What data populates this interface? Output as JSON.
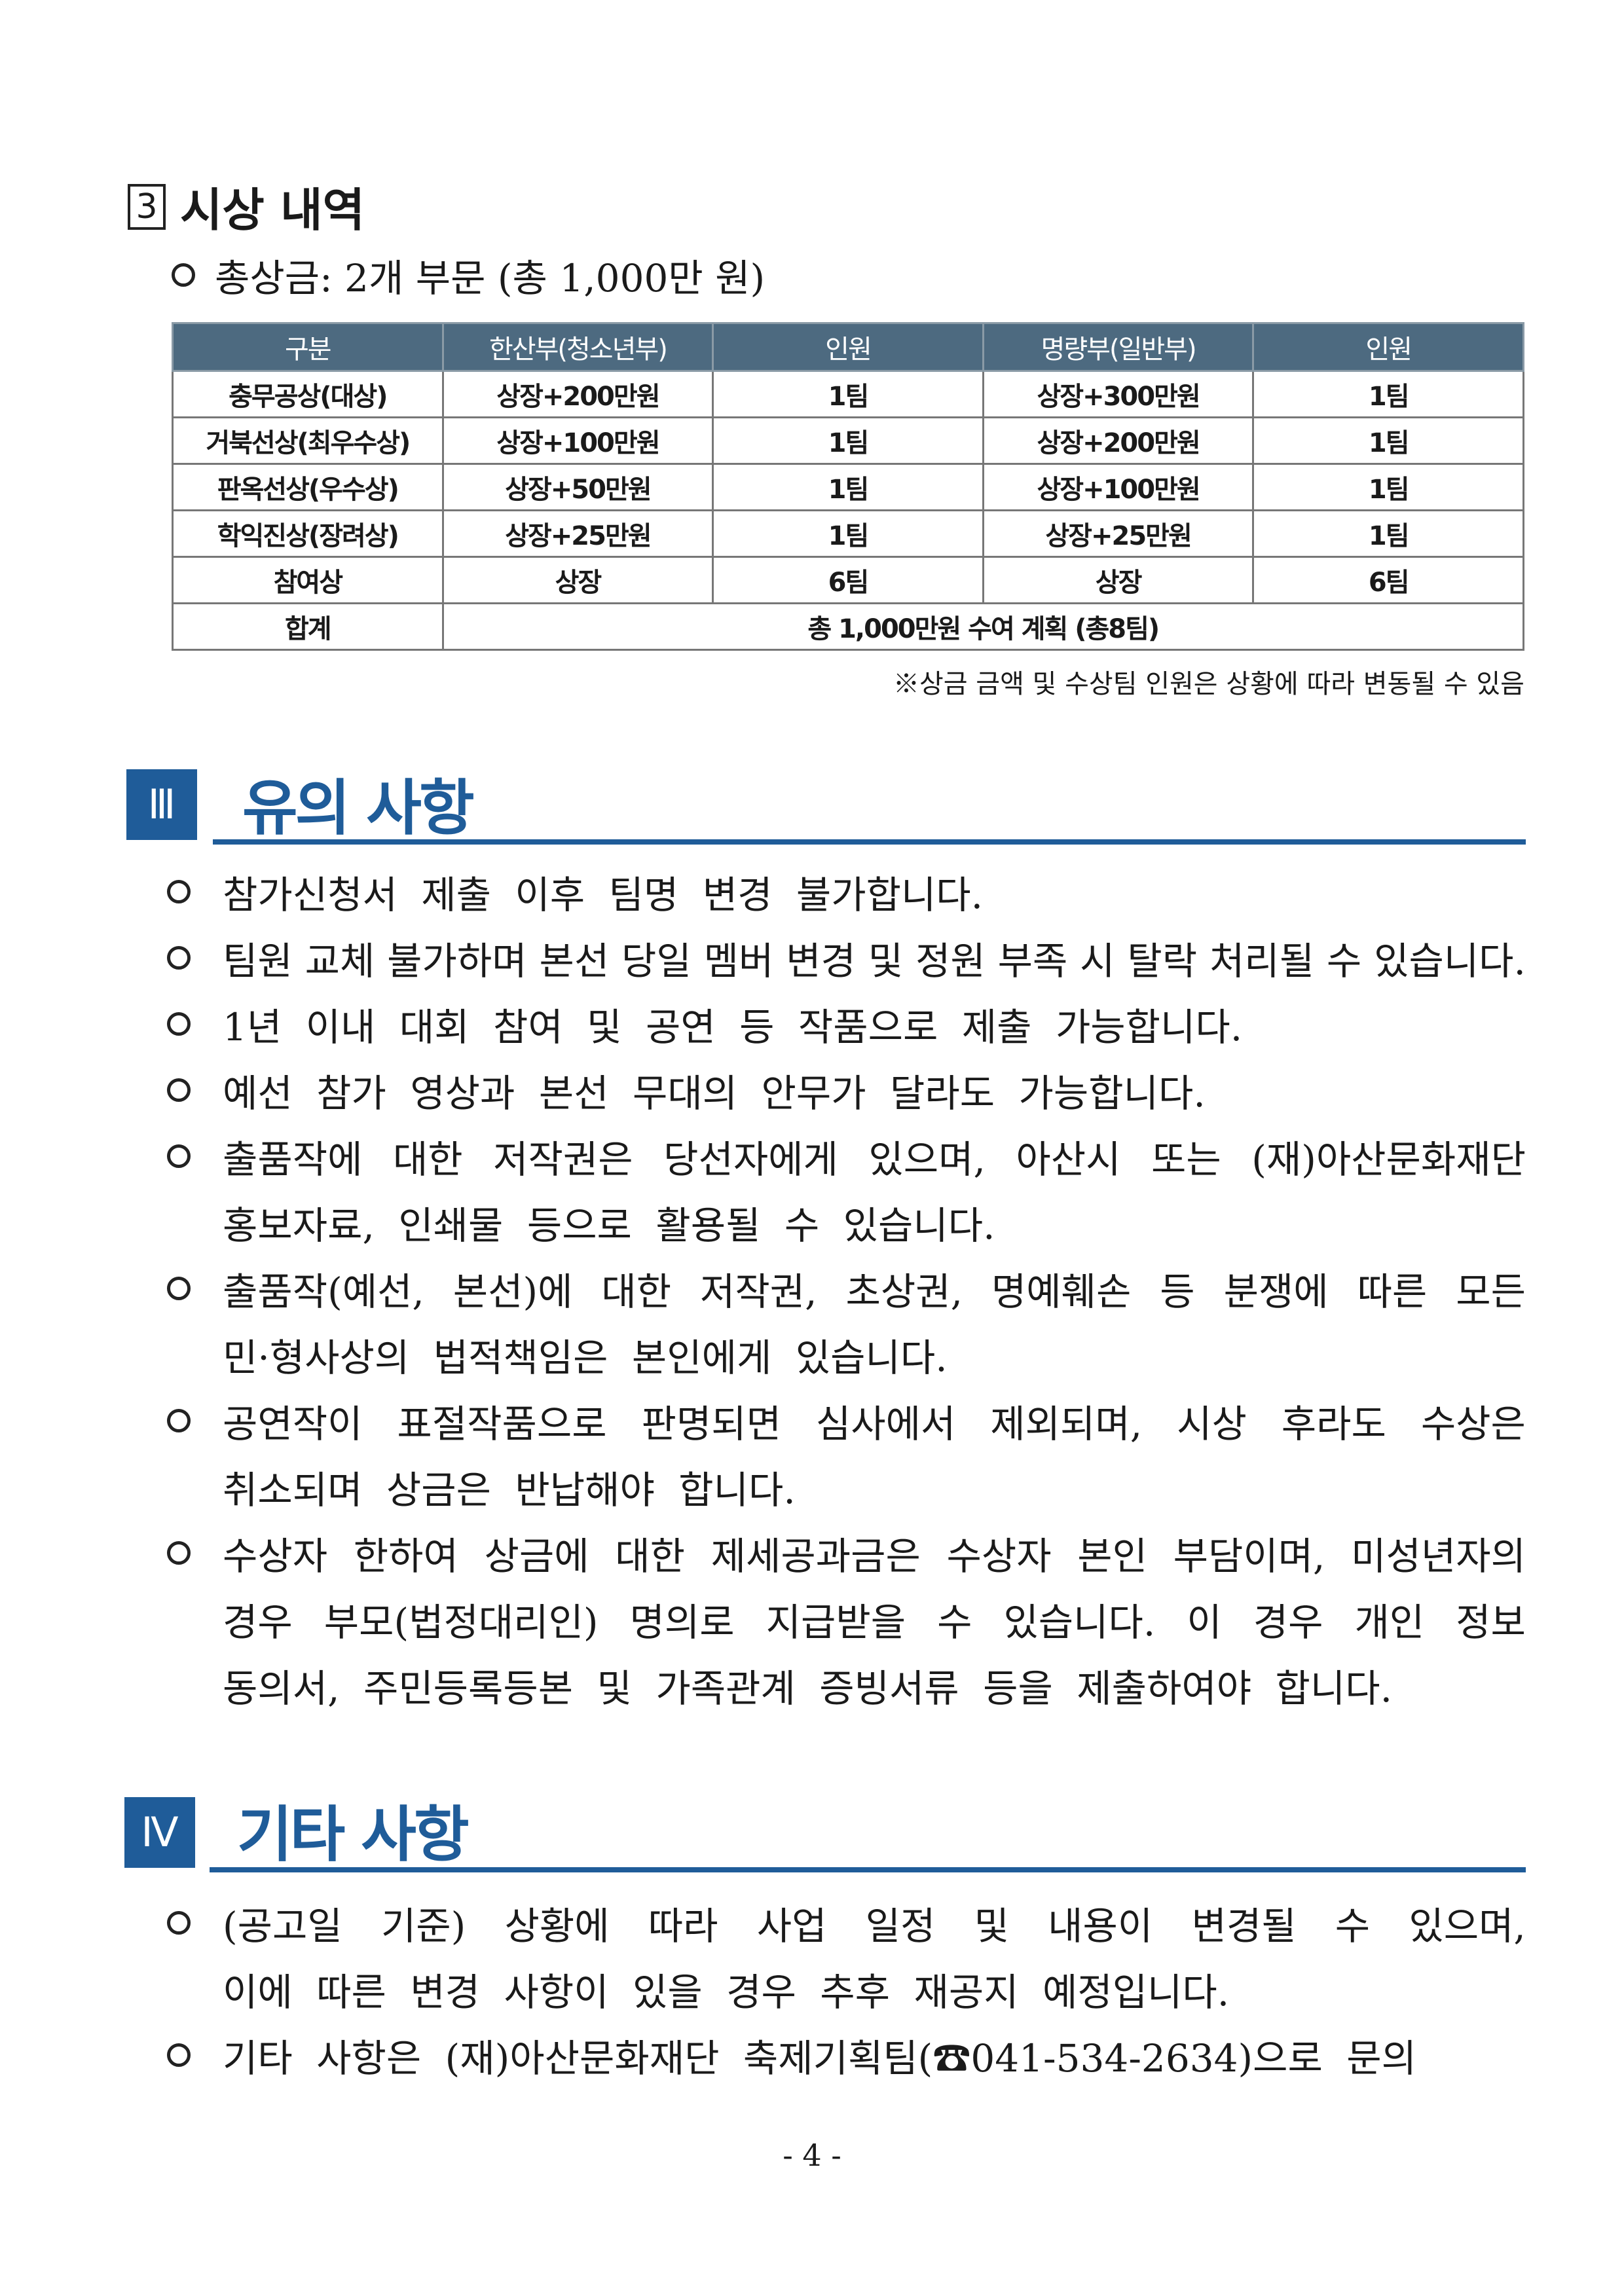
{
  "section3": {
    "number": "3",
    "title": "시상 내역",
    "total_prize": "총상금: 2개 부문 (총 1,000만 원)"
  },
  "table": {
    "headers": [
      "구분",
      "한산부(청소년부)",
      "인원",
      "명량부(일반부)",
      "인원"
    ],
    "rows": [
      [
        "충무공상(대상)",
        "상장+200만원",
        "1팀",
        "상장+300만원",
        "1팀"
      ],
      [
        "거북선상(최우수상)",
        "상장+100만원",
        "1팀",
        "상장+200만원",
        "1팀"
      ],
      [
        "판옥선상(우수상)",
        "상장+50만원",
        "1팀",
        "상장+100만원",
        "1팀"
      ],
      [
        "학익진상(장려상)",
        "상장+25만원",
        "1팀",
        "상장+25만원",
        "1팀"
      ],
      [
        "참여상",
        "상장",
        "6팀",
        "상장",
        "6팀"
      ]
    ],
    "total_label": "합계",
    "total_value": "총 1,000만원 수여 계획 (총8팀)",
    "note": "※상금 금액 및 수상팀 인원은 상황에 따라 변동될 수 있음"
  },
  "section_iii": {
    "number": "Ⅲ",
    "title": "유의 사항",
    "lines": [
      "참가신청서 제출 이후 팀명 변경 불가합니다.",
      "팀원 교체 불가하며 본선 당일 멤버 변경 및 정원 부족 시 탈락 처리될 수 있습니다.",
      "1년 이내 대회 참여 및 공연 등 작품으로 제출 가능합니다.",
      "예선 참가 영상과 본선 무대의 안무가 달라도 가능합니다.",
      "출품작에 대한 저작권은 당선자에게 있으며, 아산시 또는 (재)아산문화재단",
      "홍보자료, 인쇄물 등으로 활용될 수 있습니다.",
      "출품작(예선, 본선)에 대한 저작권, 초상권, 명예훼손 등 분쟁에 따른 모든",
      "민·형사상의 법적책임은 본인에게 있습니다.",
      "공연작이 표절작품으로 판명되면 심사에서 제외되며, 시상 후라도 수상은",
      "취소되며 상금은 반납해야 합니다.",
      "수상자 한하여 상금에 대한 제세공과금은 수상자 본인 부담이며, 미성년자의",
      "경우 부모(법정대리인) 명의로 지급받을 수 있습니다. 이 경우 개인 정보",
      "동의서, 주민등록등본 및 가족관계 증빙서류 등을 제출하여야 합니다."
    ]
  },
  "section_iv": {
    "number": "Ⅳ",
    "title": "기타 사항",
    "lines": [
      "(공고일 기준) 상황에 따라 사업 일정 및 내용이 변경될 수 있으며,",
      "이에 따른 변경 사항이 있을 경우 추후 재공지 예정입니다.",
      "기타 사항은 (재)아산문화재단 축제기획팀(☎041-534-2634)으로 문의"
    ]
  },
  "page_number": "- 4 -"
}
